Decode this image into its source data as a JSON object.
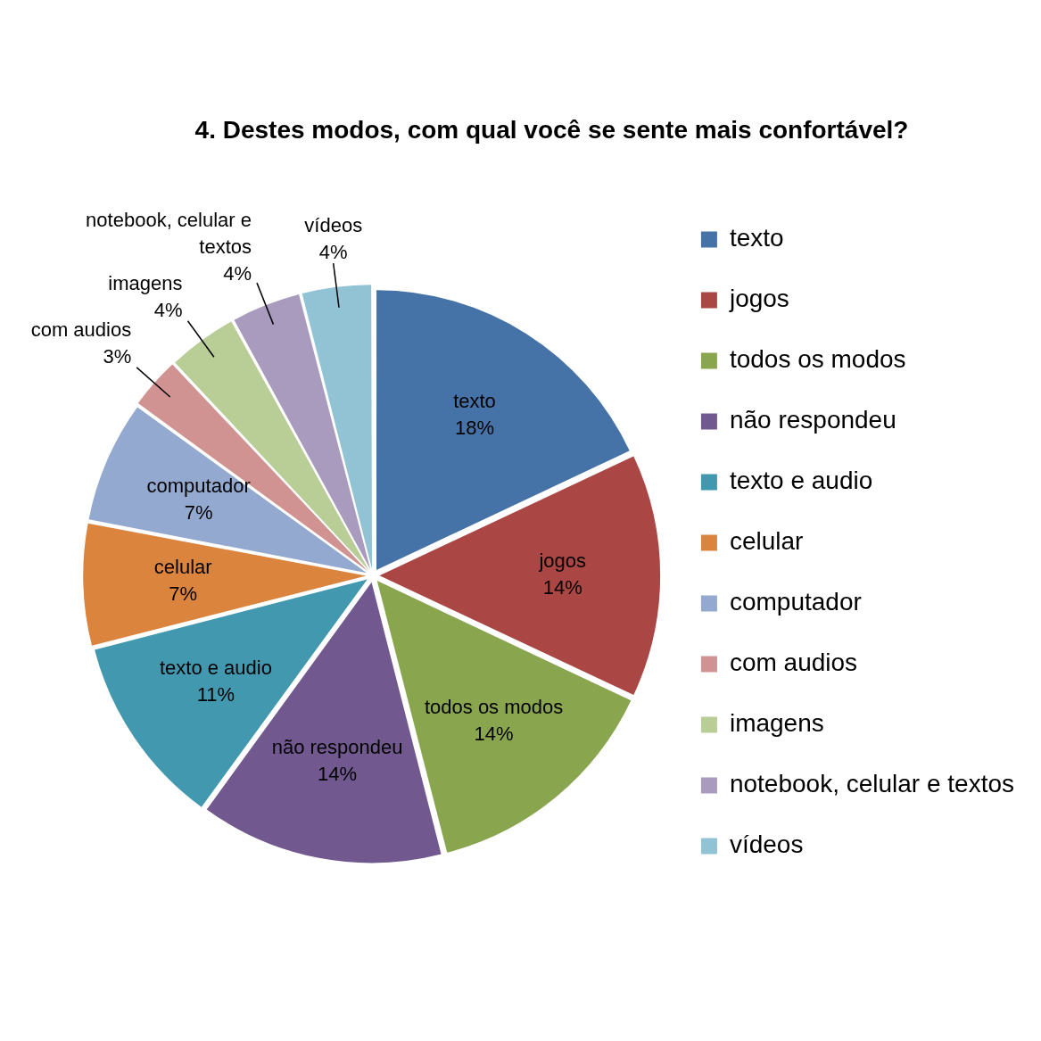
{
  "chart_data": {
    "type": "pie",
    "title": "4. Destes modos, com qual você se sente mais confortável?",
    "categories": [
      "texto",
      "jogos",
      "todos os modos",
      "não respondeu",
      "texto e audio",
      "celular",
      "computador",
      "com audios",
      "imagens",
      "notebook, celular e textos",
      "vídeos"
    ],
    "values": [
      18,
      14,
      14,
      14,
      11,
      7,
      7,
      3,
      4,
      4,
      4
    ],
    "colors": [
      "#4572a7",
      "#aa4643",
      "#89a54e",
      "#71588f",
      "#4198af",
      "#db843d",
      "#93a9cf",
      "#d19392",
      "#b9cd96",
      "#a99bbd",
      "#92c3d4"
    ],
    "value_labels": [
      "18%",
      "14%",
      "14%",
      "14%",
      "11%",
      "7%",
      "7%",
      "3%",
      "4%",
      "4%",
      "4%"
    ],
    "legend": "right"
  }
}
